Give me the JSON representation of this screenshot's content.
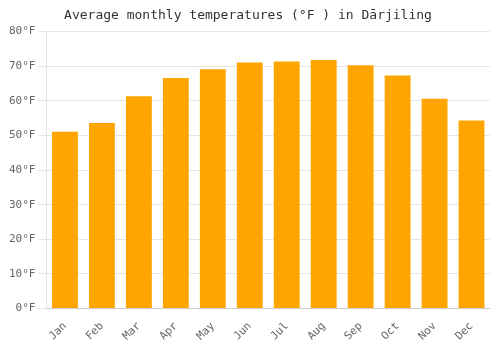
{
  "chart_data": {
    "type": "bar",
    "title": "Average monthly temperatures (°F ) in Dārjiling",
    "categories": [
      "Jan",
      "Feb",
      "Mar",
      "Apr",
      "May",
      "Jun",
      "Jul",
      "Aug",
      "Sep",
      "Oct",
      "Nov",
      "Dec"
    ],
    "values": [
      51.1,
      53.6,
      61.3,
      66.6,
      69.1,
      71.1,
      71.4,
      71.8,
      70.3,
      67.3,
      60.6,
      54.3
    ],
    "color": "#FFA500",
    "ylim": [
      0,
      80
    ],
    "yticks": [
      {
        "value": 0,
        "label": "0°F"
      },
      {
        "value": 10,
        "label": "10°F"
      },
      {
        "value": 20,
        "label": "20°F"
      },
      {
        "value": 30,
        "label": "30°F"
      },
      {
        "value": 40,
        "label": "40°F"
      },
      {
        "value": 50,
        "label": "50°F"
      },
      {
        "value": 60,
        "label": "60°F"
      },
      {
        "value": 70,
        "label": "70°F"
      },
      {
        "value": 80,
        "label": "80°F"
      }
    ],
    "grid": true
  }
}
